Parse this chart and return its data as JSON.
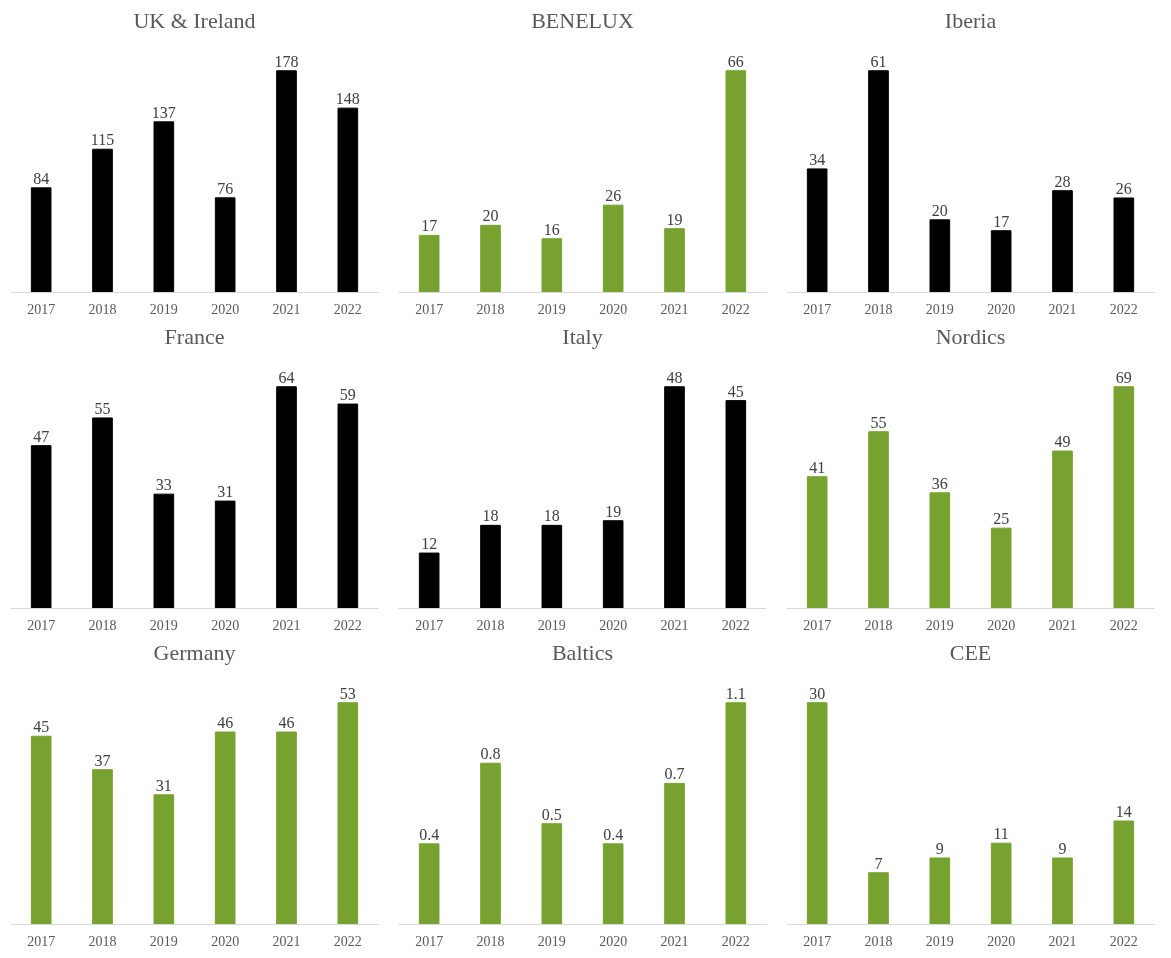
{
  "chart_data": [
    {
      "type": "bar",
      "title": "UK & Ireland",
      "categories": [
        "2017",
        "2018",
        "2019",
        "2020",
        "2021",
        "2022"
      ],
      "values": [
        84,
        115,
        137,
        76,
        178,
        148
      ],
      "color": "#000000",
      "data_labels": true,
      "grid": false
    },
    {
      "type": "bar",
      "title": "BENELUX",
      "categories": [
        "2017",
        "2018",
        "2019",
        "2020",
        "2021",
        "2022"
      ],
      "values": [
        17,
        20,
        16,
        26,
        19,
        66
      ],
      "color": "#77a22f",
      "data_labels": true,
      "grid": false
    },
    {
      "type": "bar",
      "title": "Iberia",
      "categories": [
        "2017",
        "2018",
        "2019",
        "2020",
        "2021",
        "2022"
      ],
      "values": [
        34,
        61,
        20,
        17,
        28,
        26
      ],
      "color": "#000000",
      "data_labels": true,
      "grid": false
    },
    {
      "type": "bar",
      "title": "France",
      "categories": [
        "2017",
        "2018",
        "2019",
        "2020",
        "2021",
        "2022"
      ],
      "values": [
        47,
        55,
        33,
        31,
        64,
        59
      ],
      "color": "#000000",
      "data_labels": true,
      "grid": false
    },
    {
      "type": "bar",
      "title": "Italy",
      "categories": [
        "2017",
        "2018",
        "2019",
        "2020",
        "2021",
        "2022"
      ],
      "values": [
        12,
        18,
        18,
        19,
        48,
        45
      ],
      "color": "#000000",
      "data_labels": true,
      "grid": false
    },
    {
      "type": "bar",
      "title": "Nordics",
      "categories": [
        "2017",
        "2018",
        "2019",
        "2020",
        "2021",
        "2022"
      ],
      "values": [
        41,
        55,
        36,
        25,
        49,
        69
      ],
      "color": "#77a22f",
      "data_labels": true,
      "grid": false
    },
    {
      "type": "bar",
      "title": "Germany",
      "categories": [
        "2017",
        "2018",
        "2019",
        "2020",
        "2021",
        "2022"
      ],
      "values": [
        45,
        37,
        31,
        46,
        46,
        53
      ],
      "color": "#77a22f",
      "data_labels": true,
      "grid": false
    },
    {
      "type": "bar",
      "title": "Baltics",
      "categories": [
        "2017",
        "2018",
        "2019",
        "2020",
        "2021",
        "2022"
      ],
      "values": [
        0.4,
        0.8,
        0.5,
        0.4,
        0.7,
        1.1
      ],
      "color": "#77a22f",
      "data_labels": true,
      "grid": false
    },
    {
      "type": "bar",
      "title": "CEE",
      "categories": [
        "2017",
        "2018",
        "2019",
        "2020",
        "2021",
        "2022"
      ],
      "values": [
        30,
        7,
        9,
        11,
        9,
        14
      ],
      "color": "#77a22f",
      "data_labels": true,
      "grid": false
    }
  ]
}
